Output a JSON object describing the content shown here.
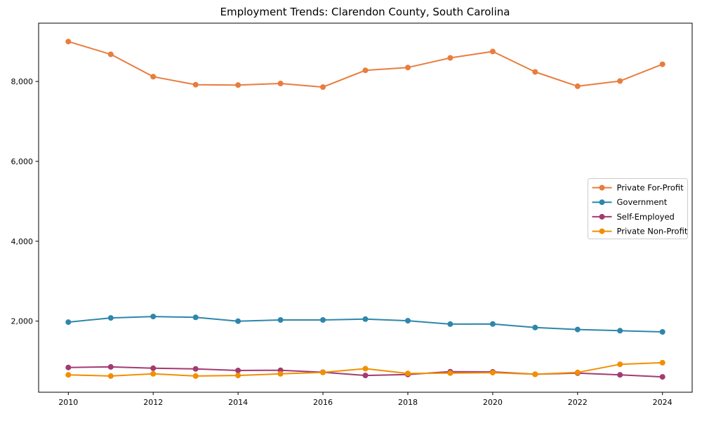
{
  "title": "Employment Trends: Clarendon County, South Carolina",
  "chart_data": {
    "type": "line",
    "title": "Employment Trends: Clarendon County, South Carolina",
    "xlabel": "",
    "ylabel": "",
    "grid": false,
    "legend_position": "center-right",
    "x": [
      2010,
      2011,
      2012,
      2013,
      2014,
      2015,
      2016,
      2017,
      2018,
      2019,
      2020,
      2021,
      2022,
      2023,
      2024
    ],
    "series": [
      {
        "name": "Private For-Profit",
        "color": "#E87D3E",
        "values": [
          9000,
          8680,
          8120,
          7920,
          7910,
          7950,
          7860,
          8280,
          8350,
          8590,
          8750,
          8240,
          7880,
          8010,
          8430
        ]
      },
      {
        "name": "Government",
        "color": "#2E86AB",
        "values": [
          1975,
          2080,
          2115,
          2095,
          2000,
          2030,
          2030,
          2050,
          2010,
          1925,
          1930,
          1840,
          1790,
          1760,
          1730
        ]
      },
      {
        "name": "Self-Employed",
        "color": "#A23B72",
        "values": [
          840,
          855,
          820,
          805,
          765,
          770,
          720,
          640,
          665,
          735,
          730,
          670,
          700,
          655,
          605
        ]
      },
      {
        "name": "Private Non-Profit",
        "color": "#F18F01",
        "values": [
          655,
          625,
          680,
          625,
          640,
          680,
          715,
          810,
          690,
          700,
          710,
          670,
          715,
          920,
          960
        ]
      }
    ],
    "xticks": [
      2010,
      2012,
      2014,
      2016,
      2018,
      2020,
      2022,
      2024
    ],
    "xtick_labels": [
      "2010",
      "2012",
      "2014",
      "2016",
      "2018",
      "2020",
      "2022",
      "2024"
    ],
    "yticks": [
      2000,
      4000,
      6000,
      8000
    ],
    "ytick_labels": [
      "2,000",
      "4,000",
      "6,000",
      "8,000"
    ],
    "xlim": [
      2009.3,
      2024.7
    ],
    "ylim": [
      220,
      9460
    ]
  }
}
